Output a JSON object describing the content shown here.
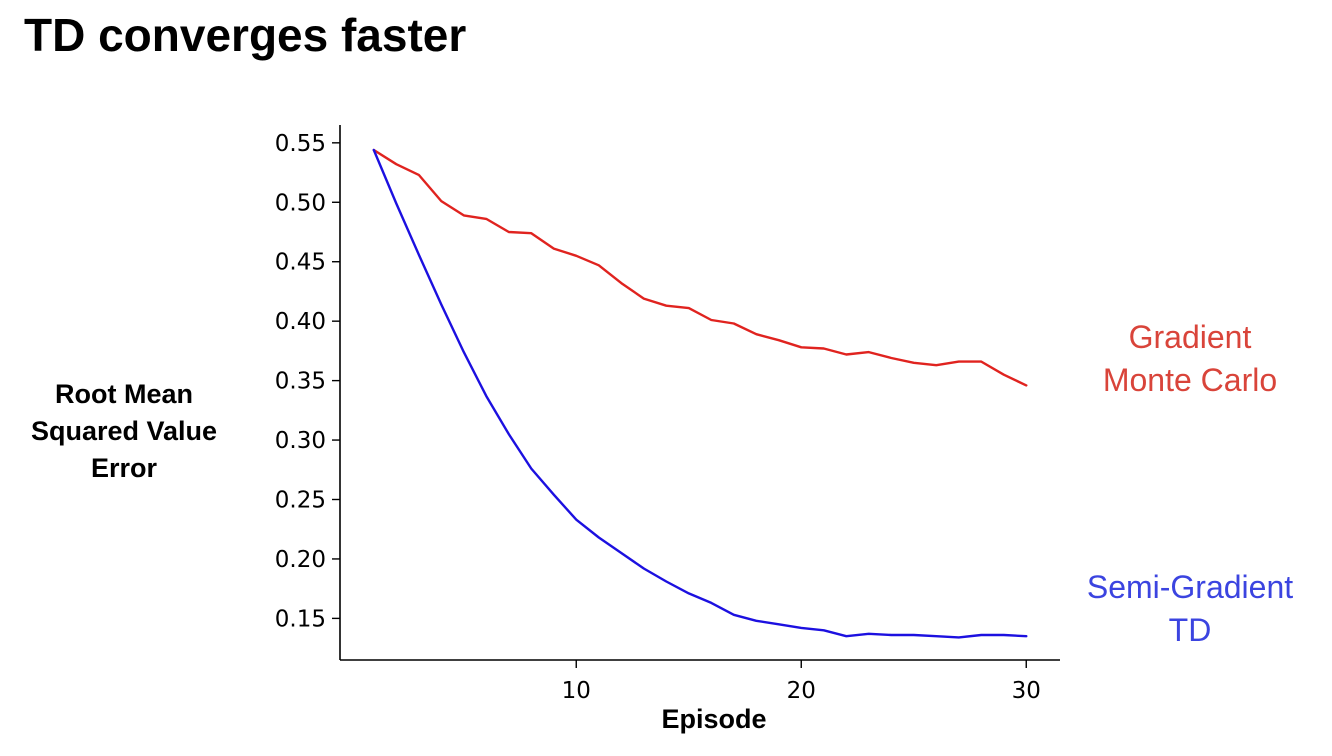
{
  "title": "TD converges faster",
  "chart_data": {
    "type": "line",
    "xlabel": "Episode",
    "ylabel_lines": [
      "Root Mean",
      "Squared Value",
      "Error"
    ],
    "xlim": [
      -0.5,
      31.5
    ],
    "ylim": [
      0.115,
      0.565
    ],
    "xticks": [
      10,
      20,
      30
    ],
    "yticks": [
      0.15,
      0.2,
      0.25,
      0.3,
      0.35,
      0.4,
      0.45,
      0.5,
      0.55
    ],
    "ytick_labels": [
      "0.15",
      "0.20",
      "0.25",
      "0.30",
      "0.35",
      "0.40",
      "0.45",
      "0.50",
      "0.55"
    ],
    "grid": false,
    "x": [
      1,
      2,
      3,
      4,
      5,
      6,
      7,
      8,
      9,
      10,
      11,
      12,
      13,
      14,
      15,
      16,
      17,
      18,
      19,
      20,
      21,
      22,
      23,
      24,
      25,
      26,
      27,
      28,
      29,
      30
    ],
    "series": [
      {
        "name_lines": [
          "Gradient",
          "Monte Carlo"
        ],
        "color": "#e0231f",
        "label_color": "#d9443a",
        "values": [
          0.544,
          0.532,
          0.523,
          0.501,
          0.489,
          0.486,
          0.475,
          0.474,
          0.461,
          0.455,
          0.447,
          0.432,
          0.419,
          0.413,
          0.411,
          0.401,
          0.398,
          0.389,
          0.384,
          0.378,
          0.377,
          0.372,
          0.374,
          0.369,
          0.365,
          0.363,
          0.366,
          0.366,
          0.355,
          0.346
        ]
      },
      {
        "name_lines": [
          "Semi-Gradient",
          "TD"
        ],
        "color": "#1c10e0",
        "label_color": "#3b44e0",
        "values": [
          0.544,
          0.499,
          0.456,
          0.414,
          0.374,
          0.337,
          0.305,
          0.276,
          0.254,
          0.233,
          0.218,
          0.205,
          0.192,
          0.181,
          0.171,
          0.163,
          0.153,
          0.148,
          0.145,
          0.142,
          0.14,
          0.135,
          0.137,
          0.136,
          0.136,
          0.135,
          0.134,
          0.136,
          0.136,
          0.135
        ]
      }
    ]
  }
}
